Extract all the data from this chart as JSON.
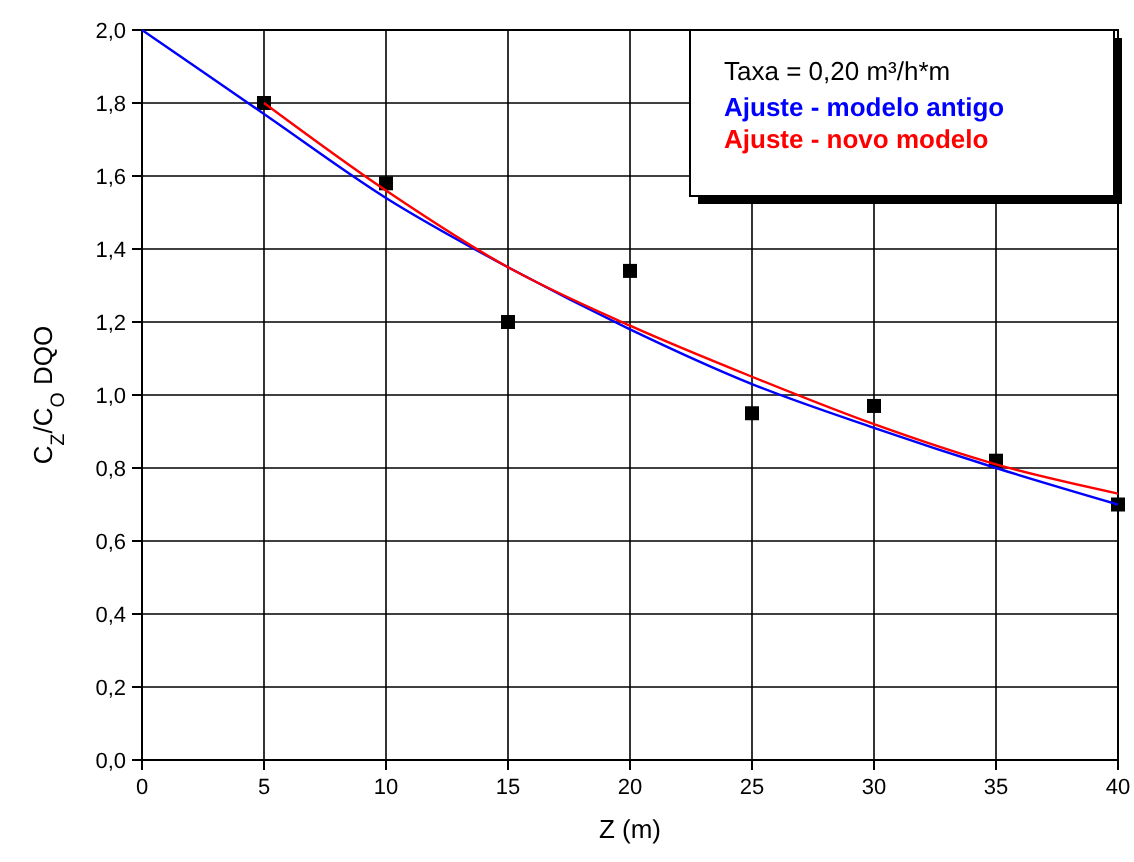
{
  "chart_data": {
    "type": "line",
    "xlabel": "Z (m)",
    "ylabel": "C$_{Z}$/C$_{O}$ DQO",
    "legend_title": "Taxa = 0,20 m³/h*m",
    "xlim": [
      0,
      40
    ],
    "xticks": [
      0,
      5,
      10,
      15,
      20,
      25,
      30,
      35,
      40
    ],
    "ylim": [
      0,
      2
    ],
    "yticks": [
      {
        "value": 0,
        "label": "0,0"
      },
      {
        "value": 0.2,
        "label": "0,2"
      },
      {
        "value": 0.4,
        "label": "0,4"
      },
      {
        "value": 0.6,
        "label": "0,6"
      },
      {
        "value": 0.8,
        "label": "0,8"
      },
      {
        "value": 1,
        "label": "1,0"
      },
      {
        "value": 1.2,
        "label": "1,2"
      },
      {
        "value": 1.4,
        "label": "1,4"
      },
      {
        "value": 1.6,
        "label": "1,6"
      },
      {
        "value": 1.8,
        "label": "1,8"
      },
      {
        "value": 2,
        "label": "2,0"
      }
    ],
    "grid": true,
    "legend": "top right",
    "series": [
      {
        "type": "scatter",
        "marker": "square",
        "color": "#000000",
        "x": [
          5,
          10,
          15,
          20,
          25,
          30,
          35,
          40
        ],
        "values": [
          1.8,
          1.58,
          1.2,
          1.34,
          0.95,
          0.97,
          0.82,
          0.7
        ]
      },
      {
        "name": "Ajuste - modelo antigo",
        "color": "#0000ff",
        "x": [
          0,
          5,
          10,
          15,
          20,
          25,
          30,
          35,
          40
        ],
        "values": [
          2.0,
          1.77,
          1.54,
          1.35,
          1.18,
          1.03,
          0.91,
          0.8,
          0.7
        ]
      },
      {
        "name": "Ajuste - novo modelo",
        "color": "#ff0000",
        "x": [
          5,
          10,
          15,
          20,
          25,
          30,
          35,
          40
        ],
        "values": [
          1.8,
          1.56,
          1.35,
          1.19,
          1.05,
          0.92,
          0.81,
          0.73
        ]
      }
    ]
  }
}
